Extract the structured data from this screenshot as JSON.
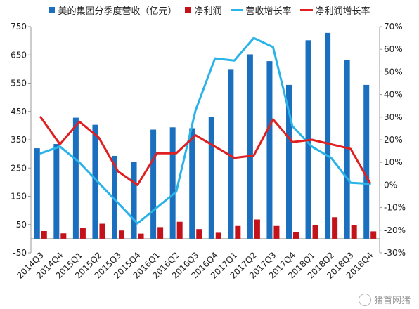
{
  "colors": {
    "revenue": "#1a6fbe",
    "profit": "#c4121a",
    "revenue_growth": "#2ab3e8",
    "profit_growth": "#e02020"
  },
  "watermark": "猪首网猪",
  "chart_data": {
    "type": "bar",
    "legend_position": "top",
    "categories": [
      "2014Q3",
      "2014Q4",
      "2015Q1",
      "2015Q2",
      "2015Q3",
      "2015Q4",
      "2016Q1",
      "2016Q2",
      "2016Q3",
      "2016Q4",
      "2017Q1",
      "2017Q2",
      "2017Q3",
      "2017Q4",
      "2018Q1",
      "2018Q2",
      "2018Q3",
      "2018Q4"
    ],
    "series": [
      {
        "name": "美的集团分季度营收（亿元）",
        "type": "bar",
        "axis": "left",
        "values": [
          320,
          335,
          428,
          403,
          293,
          272,
          386,
          394,
          391,
          430,
          600,
          652,
          628,
          544,
          702,
          728,
          632,
          544
        ]
      },
      {
        "name": "净利润",
        "type": "bar",
        "axis": "left",
        "values": [
          27,
          19,
          37,
          53,
          29,
          18,
          41,
          60,
          34,
          21,
          45,
          68,
          45,
          24,
          49,
          76,
          49,
          26
        ]
      },
      {
        "name": "营收增长率",
        "type": "line",
        "axis": "right",
        "unit": "%",
        "values": [
          14,
          17,
          10,
          1,
          -8,
          -17,
          -10,
          -3,
          33,
          56,
          55,
          65,
          61,
          26,
          17,
          12,
          1,
          0.5
        ]
      },
      {
        "name": "净利润增长率",
        "type": "line",
        "axis": "right",
        "unit": "%",
        "values": [
          30,
          18,
          28,
          21,
          6,
          0,
          14,
          14,
          22,
          17,
          12,
          13,
          29,
          19,
          20,
          18,
          16,
          1
        ]
      }
    ],
    "y_left": {
      "min": -50,
      "max": 750,
      "ticks": [
        -50,
        50,
        150,
        250,
        350,
        450,
        550,
        650,
        750
      ]
    },
    "y_right": {
      "min": -30,
      "max": 70,
      "ticks": [
        -30,
        -20,
        -10,
        0,
        10,
        20,
        30,
        40,
        50,
        60,
        70
      ],
      "tick_labels": [
        "-30%",
        "-20%",
        "-10%",
        "0%",
        "10%",
        "20%",
        "30%",
        "40%",
        "50%",
        "60%",
        "70%"
      ]
    },
    "grid": false
  }
}
